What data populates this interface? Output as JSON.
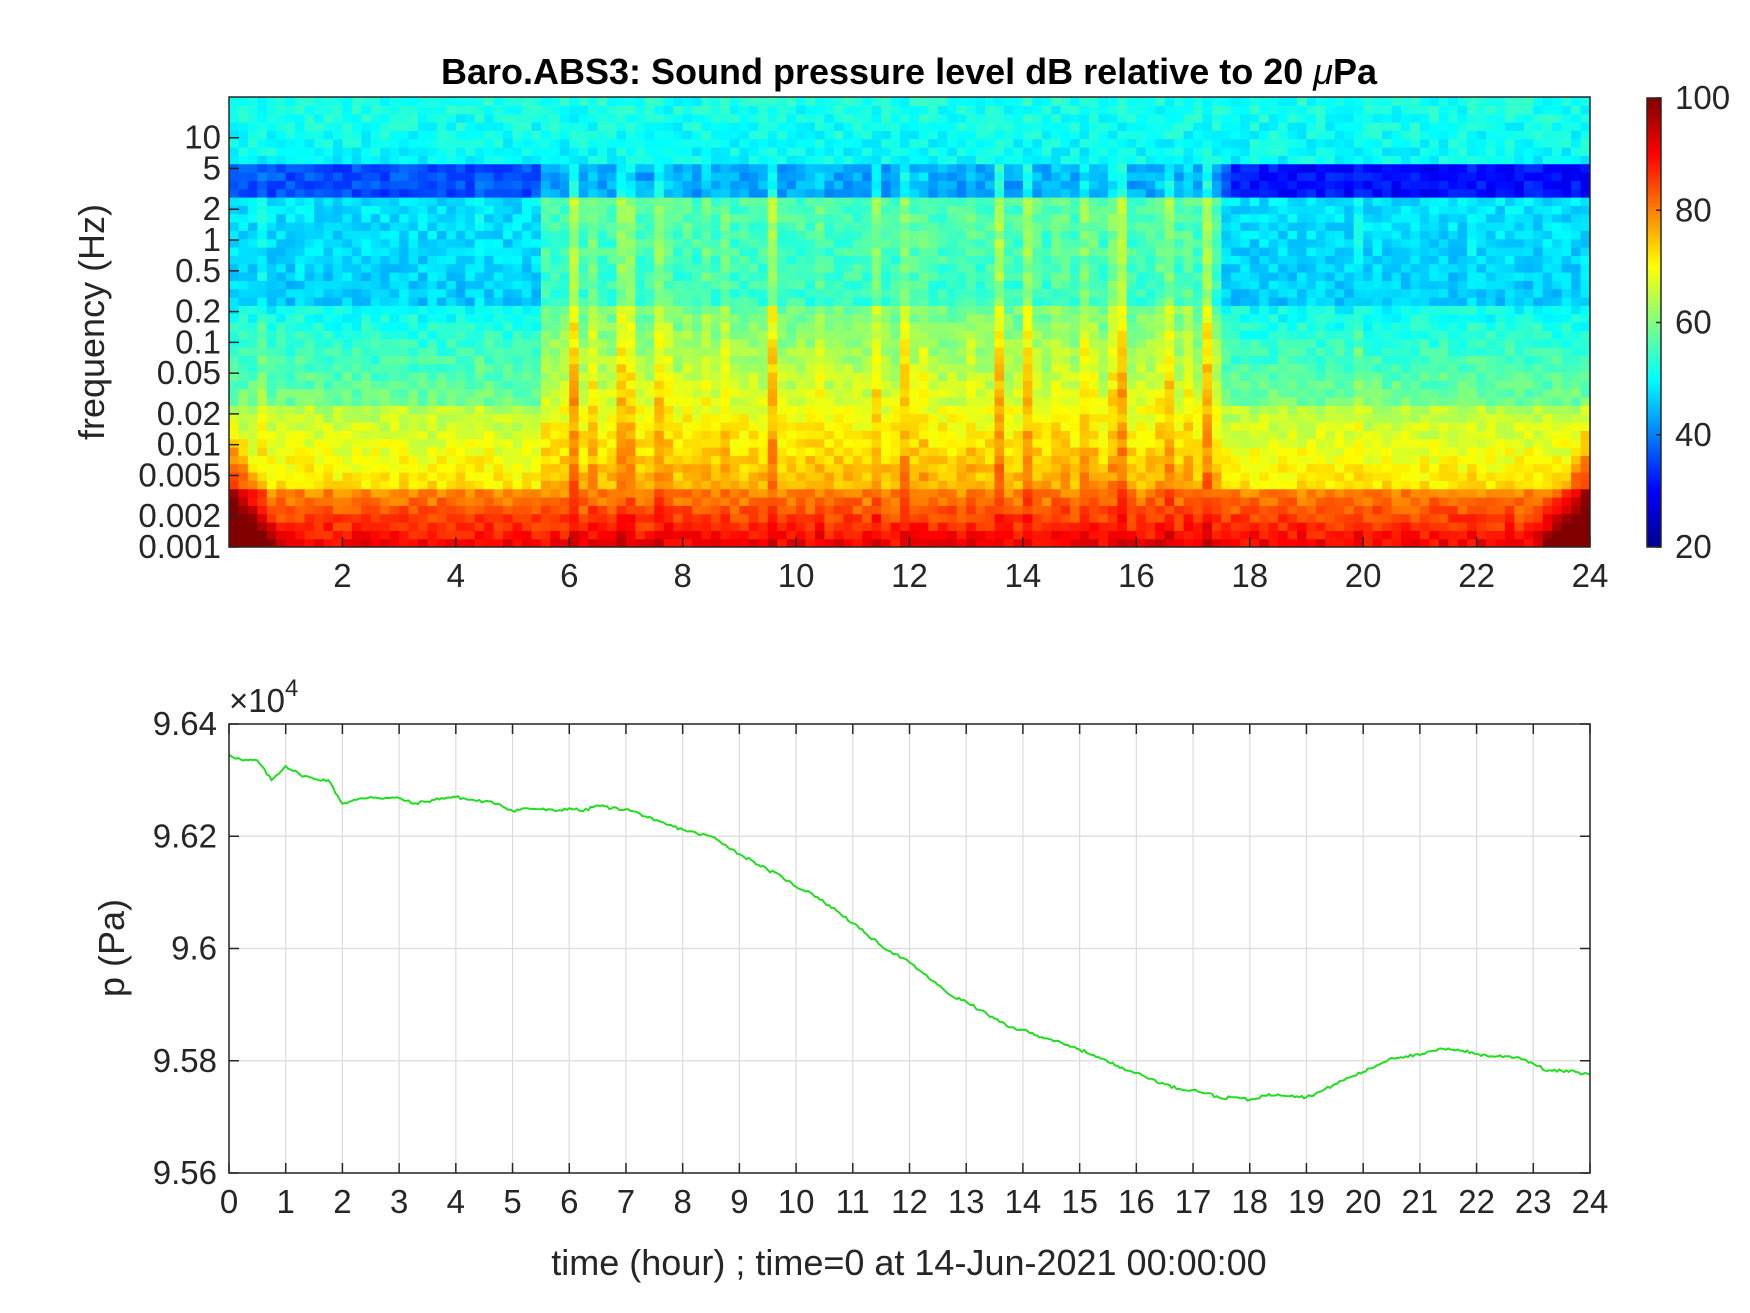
{
  "chart_data": [
    {
      "type": "heatmap",
      "title": "Baro.ABS3: Sound pressure level dB relative to 20 μPa",
      "title_parts": [
        "Baro.ABS3: Sound pressure level dB relative to 20 ",
        "μ",
        "Pa"
      ],
      "xlabel": "",
      "ylabel": "frequency (Hz)",
      "x_range": [
        0,
        24
      ],
      "x_ticks": [
        2,
        4,
        6,
        8,
        10,
        12,
        14,
        16,
        18,
        20,
        22,
        24
      ],
      "y_scale": "log",
      "y_range": [
        0.001,
        25
      ],
      "y_ticks": [
        0.001,
        0.002,
        0.005,
        0.01,
        0.02,
        0.05,
        0.1,
        0.2,
        0.5,
        1,
        2,
        5,
        10
      ],
      "y_tick_labels": [
        "0.001",
        "0.002",
        "0.005",
        "0.01",
        "0.02",
        "0.05",
        "0.1",
        "0.2",
        "0.5",
        "1",
        "2",
        "5",
        "10"
      ],
      "colormap": "jet",
      "color_range": [
        20,
        100
      ],
      "colorbar_ticks": [
        20,
        40,
        60,
        80,
        100
      ],
      "colorbar_location": "right",
      "active_hours": [
        5.5,
        17.5
      ]
    },
    {
      "type": "line",
      "title": "",
      "xlabel": "time (hour) ; time=0 at 14-Jun-2021 00:00:00",
      "ylabel": "p (Pa)",
      "y_exponent_base": "×10",
      "y_exponent_power": "4",
      "x_range": [
        0,
        24
      ],
      "x_ticks": [
        0,
        1,
        2,
        3,
        4,
        5,
        6,
        7,
        8,
        9,
        10,
        11,
        12,
        13,
        14,
        15,
        16,
        17,
        18,
        19,
        20,
        21,
        22,
        23,
        24
      ],
      "y_range": [
        95600,
        96400
      ],
      "y_ticks": [
        95600,
        95800,
        96000,
        96200,
        96400
      ],
      "y_tick_labels": [
        "9.56",
        "9.58",
        "9.6",
        "9.62",
        "9.64"
      ],
      "grid": true,
      "series": [
        {
          "color": "#22dd22",
          "x": [
            0,
            0.25,
            0.5,
            0.75,
            1.0,
            1.25,
            1.5,
            1.75,
            2.0,
            2.25,
            2.5,
            2.75,
            3.0,
            3.25,
            3.5,
            3.75,
            4.0,
            4.25,
            4.5,
            4.75,
            5.0,
            5.25,
            5.5,
            5.75,
            6.0,
            6.25,
            6.5,
            6.75,
            7.0,
            7.25,
            7.5,
            7.75,
            8.0,
            8.25,
            8.5,
            8.75,
            9.0,
            9.25,
            9.5,
            9.75,
            10.0,
            10.25,
            10.5,
            10.75,
            11.0,
            11.25,
            11.5,
            11.75,
            12.0,
            12.25,
            12.5,
            12.75,
            13.0,
            13.25,
            13.5,
            13.75,
            14.0,
            14.25,
            14.5,
            14.75,
            15.0,
            15.25,
            15.5,
            15.75,
            16.0,
            16.25,
            16.5,
            16.75,
            17.0,
            17.25,
            17.5,
            17.75,
            18.0,
            18.25,
            18.5,
            18.75,
            19.0,
            19.25,
            19.5,
            19.75,
            20.0,
            20.25,
            20.5,
            20.75,
            21.0,
            21.25,
            21.5,
            21.75,
            22.0,
            22.25,
            22.5,
            22.75,
            23.0,
            23.25,
            23.5,
            23.75,
            24.0
          ],
          "y": [
            96345,
            96335,
            96335,
            96300,
            96325,
            96310,
            96302,
            96300,
            96258,
            96265,
            96270,
            96268,
            96268,
            96258,
            96262,
            96268,
            96270,
            96265,
            96262,
            96258,
            96245,
            96250,
            96248,
            96245,
            96250,
            96245,
            96255,
            96250,
            96248,
            96240,
            96228,
            96220,
            96212,
            96205,
            96200,
            96185,
            96168,
            96155,
            96140,
            96128,
            96110,
            96100,
            96082,
            96065,
            96045,
            96025,
            96005,
            95990,
            95975,
            95955,
            95935,
            95915,
            95905,
            95890,
            95875,
            95860,
            95855,
            95845,
            95838,
            95828,
            95820,
            95810,
            95798,
            95788,
            95778,
            95768,
            95758,
            95750,
            95748,
            95742,
            95733,
            95735,
            95730,
            95738,
            95740,
            95738,
            95735,
            95745,
            95758,
            95770,
            95780,
            95792,
            95805,
            95808,
            95810,
            95818,
            95822,
            95818,
            95812,
            95808,
            95808,
            95806,
            95795,
            95782,
            95782,
            95780,
            95775
          ]
        }
      ]
    }
  ]
}
